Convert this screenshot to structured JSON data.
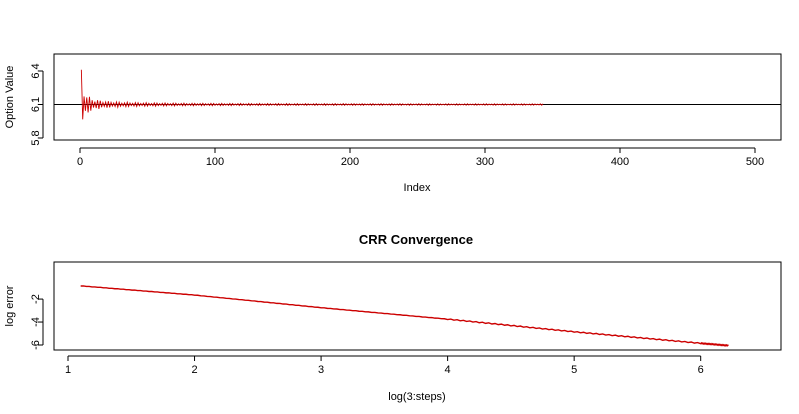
{
  "chart_data": [
    {
      "type": "line",
      "title": "",
      "xlabel": "Index",
      "ylabel": "Option Value",
      "xlim": [
        0,
        500
      ],
      "ylim": [
        5.8,
        6.4
      ],
      "x_ticks": [
        0,
        100,
        200,
        300,
        400,
        500
      ],
      "y_ticks": [
        5.8,
        6.1,
        6.4
      ],
      "x_tick_labels": [
        "0",
        "100",
        "200",
        "300",
        "400",
        "500"
      ],
      "y_tick_labels": [
        "5.8",
        "6.1",
        "6.4"
      ],
      "reference_line": {
        "y": 6.1
      },
      "series_color": "#cc0000",
      "series": [
        {
          "description": "oscillating option value converging toward 6.1",
          "x_start": 1,
          "x_end": 343,
          "limit": 6.1,
          "initial_amplitude": 0.34,
          "values_sample": [
            [
              1,
              6.39
            ],
            [
              2,
              5.87
            ],
            [
              3,
              6.31
            ],
            [
              4,
              5.93
            ],
            [
              10,
              6.19
            ],
            [
              11,
              6.02
            ],
            [
              30,
              6.13
            ],
            [
              31,
              6.08
            ],
            [
              100,
              6.108
            ],
            [
              101,
              6.096
            ],
            [
              343,
              6.101
            ]
          ]
        }
      ]
    },
    {
      "type": "line",
      "title": "CRR Convergence",
      "xlabel": "log(3:steps)",
      "ylabel": "log error",
      "xlim": [
        1,
        6.2
      ],
      "ylim": [
        -6,
        -0.6
      ],
      "x_ticks": [
        1,
        2,
        3,
        4,
        5,
        6
      ],
      "y_ticks": [
        -6,
        -4,
        -2
      ],
      "x_tick_labels": [
        "1",
        "2",
        "3",
        "4",
        "5",
        "6"
      ],
      "y_tick_labels": [
        "-6",
        "-4",
        "-2"
      ],
      "series_color": "#cc0000",
      "series": [
        {
          "description": "log error decreasing roughly linearly",
          "points": [
            [
              1.1,
              -0.85
            ],
            [
              2.0,
              -1.65
            ],
            [
              3.0,
              -2.75
            ],
            [
              4.0,
              -3.75
            ],
            [
              5.0,
              -4.85
            ],
            [
              6.0,
              -5.85
            ],
            [
              6.22,
              -6.05
            ]
          ]
        }
      ]
    }
  ]
}
